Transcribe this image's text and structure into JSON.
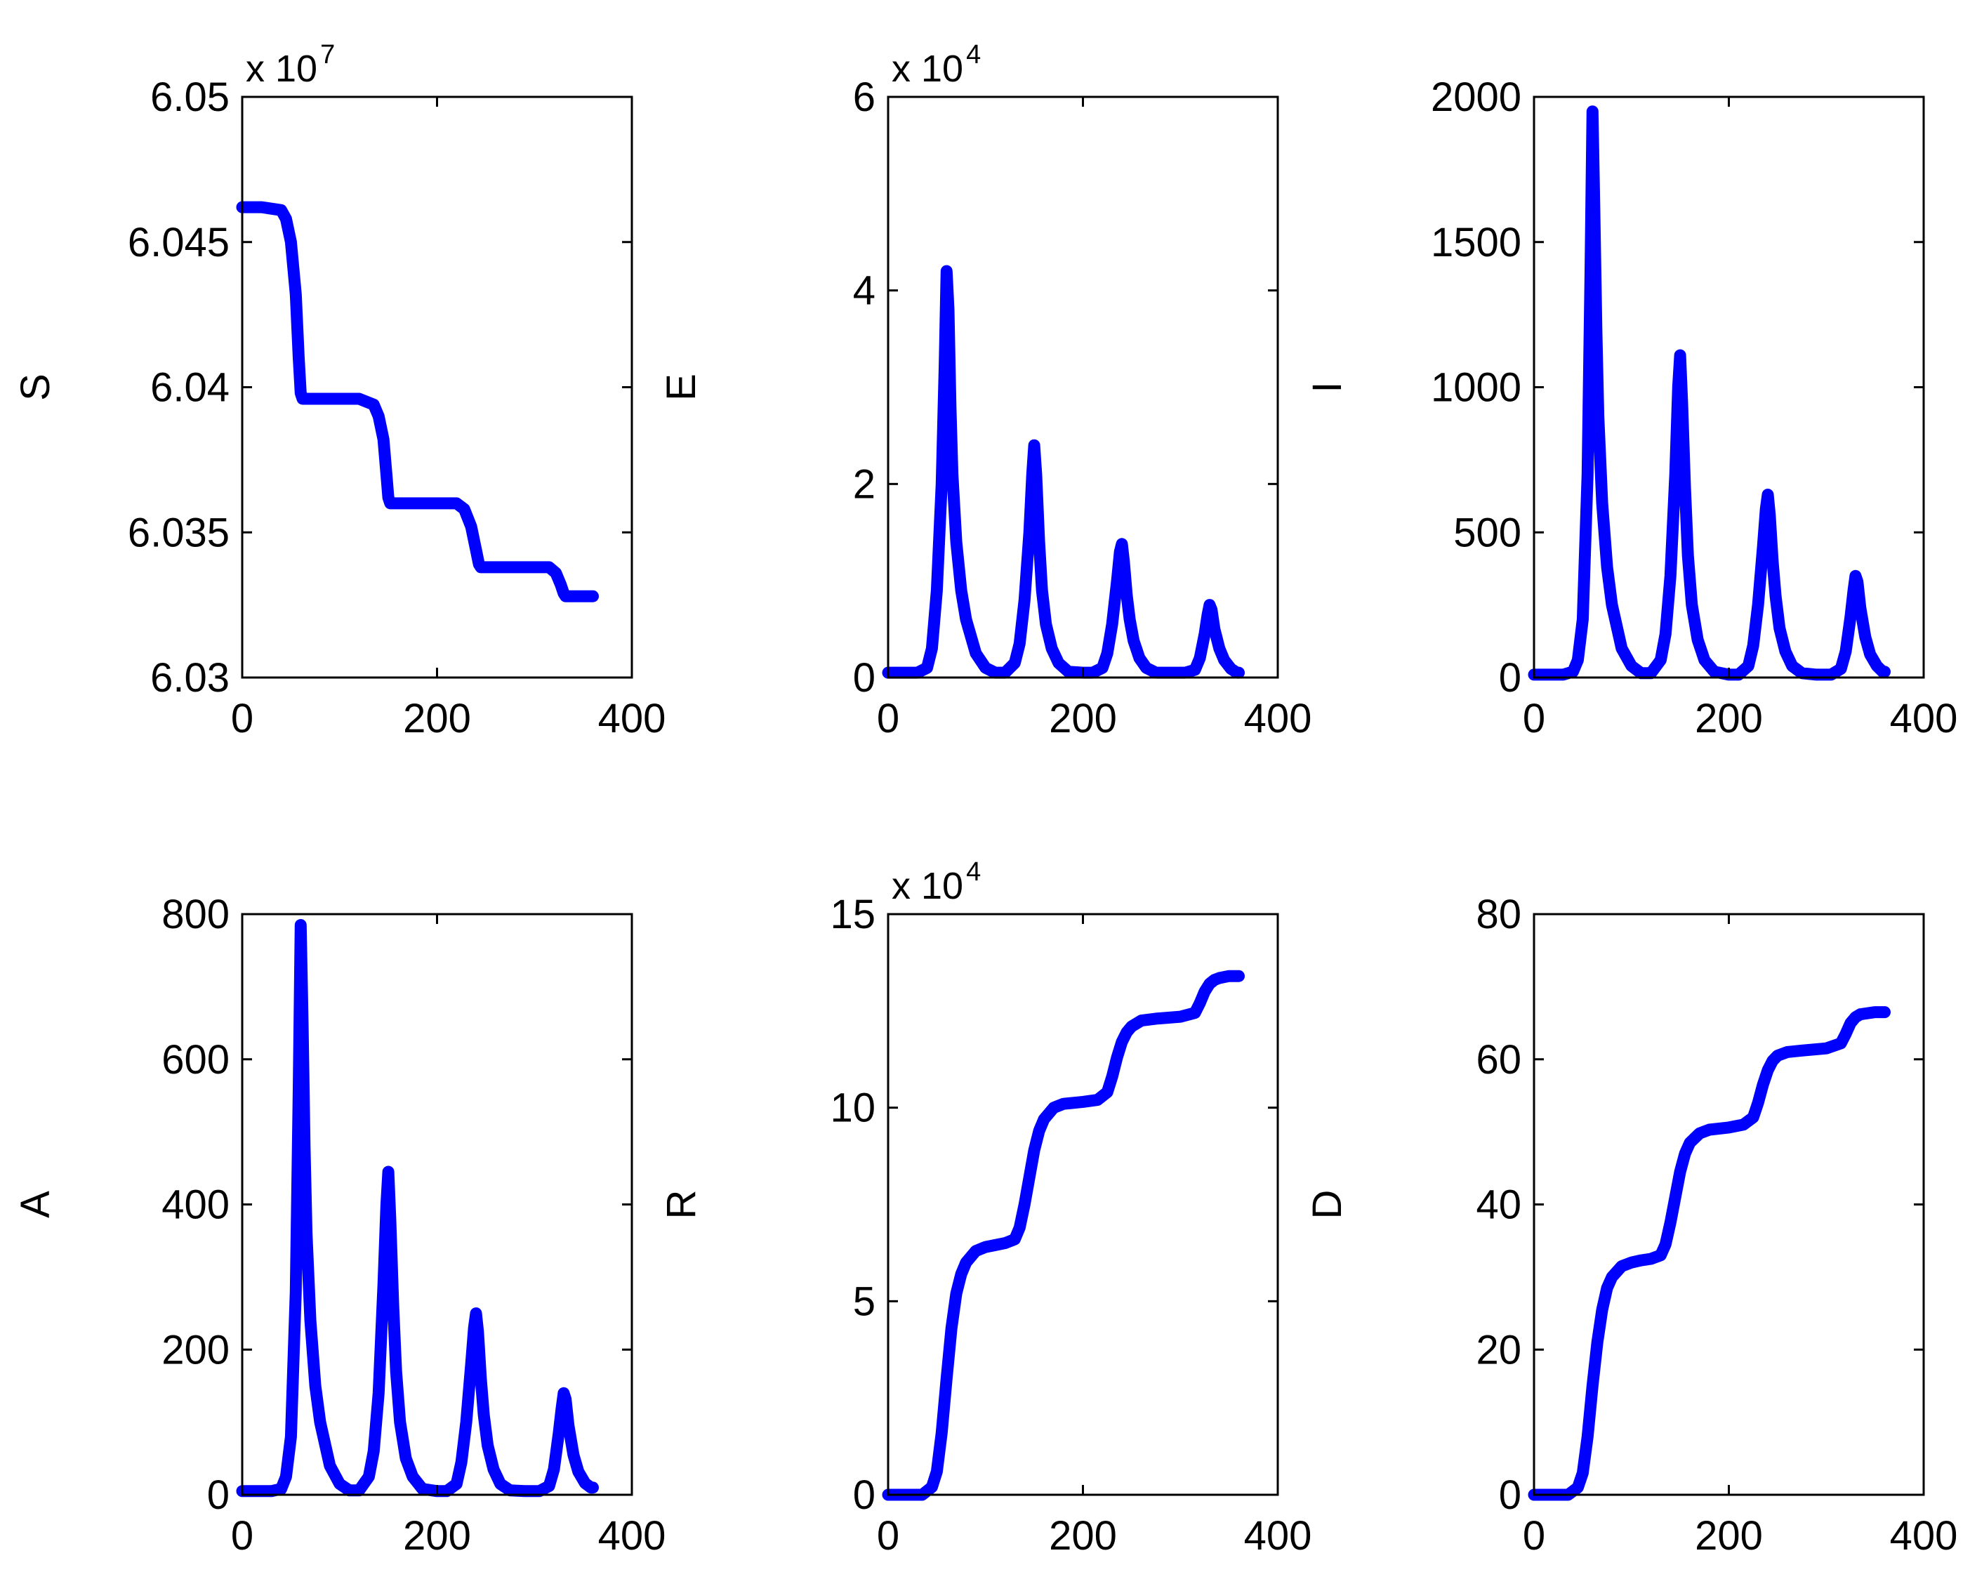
{
  "chart_data": [
    {
      "type": "line",
      "title": "",
      "xlabel": "",
      "ylabel": "S",
      "multiplier": {
        "base": "x 10",
        "exp": "7"
      },
      "xlim": [
        0,
        400
      ],
      "ylim": [
        6.03,
        6.05
      ],
      "xticks": [
        0,
        200,
        400
      ],
      "xtick_labels": [
        "0",
        "200",
        "400"
      ],
      "yticks": [
        6.03,
        6.035,
        6.04,
        6.045,
        6.05
      ],
      "ytick_labels": [
        "6.03",
        "6.035",
        "6.04",
        "6.045",
        "6.05"
      ],
      "color": "#0000ff",
      "series": [
        {
          "name": "S",
          "x": [
            0,
            20,
            40,
            45,
            50,
            55,
            58,
            60,
            62,
            80,
            120,
            135,
            140,
            145,
            148,
            150,
            152,
            200,
            220,
            228,
            235,
            240,
            243,
            245,
            300,
            315,
            322,
            327,
            330,
            332,
            360
          ],
          "y": [
            6.0462,
            6.0462,
            6.0461,
            6.0458,
            6.045,
            6.0432,
            6.041,
            6.0398,
            6.0396,
            6.0396,
            6.0396,
            6.0394,
            6.039,
            6.0382,
            6.037,
            6.0362,
            6.036,
            6.036,
            6.036,
            6.0358,
            6.0352,
            6.0344,
            6.0339,
            6.0338,
            6.0338,
            6.0338,
            6.0336,
            6.0332,
            6.0329,
            6.0328,
            6.0328
          ]
        }
      ]
    },
    {
      "type": "line",
      "title": "",
      "xlabel": "",
      "ylabel": "E",
      "multiplier": {
        "base": "x 10",
        "exp": "4"
      },
      "xlim": [
        0,
        400
      ],
      "ylim": [
        0,
        6
      ],
      "xticks": [
        0,
        200,
        400
      ],
      "xtick_labels": [
        "0",
        "200",
        "400"
      ],
      "yticks": [
        0,
        2,
        4,
        6
      ],
      "ytick_labels": [
        "0",
        "2",
        "4",
        "6"
      ],
      "color": "#0000ff",
      "series": [
        {
          "name": "E",
          "x": [
            0,
            30,
            40,
            45,
            50,
            55,
            58,
            60,
            62,
            64,
            66,
            70,
            75,
            80,
            90,
            100,
            110,
            120,
            130,
            135,
            140,
            145,
            148,
            150,
            152,
            155,
            158,
            162,
            168,
            175,
            185,
            200,
            210,
            220,
            225,
            230,
            235,
            238,
            240,
            242,
            245,
            248,
            252,
            258,
            265,
            275,
            290,
            305,
            315,
            320,
            325,
            328,
            330,
            332,
            335,
            340,
            345,
            352,
            358,
            360
          ],
          "y": [
            0.05,
            0.05,
            0.1,
            0.3,
            0.9,
            2.0,
            3.2,
            4.2,
            3.8,
            2.8,
            2.1,
            1.4,
            0.9,
            0.6,
            0.25,
            0.1,
            0.05,
            0.05,
            0.15,
            0.35,
            0.8,
            1.5,
            2.1,
            2.4,
            2.1,
            1.4,
            0.9,
            0.55,
            0.3,
            0.15,
            0.06,
            0.05,
            0.05,
            0.1,
            0.25,
            0.55,
            1.0,
            1.3,
            1.38,
            1.2,
            0.85,
            0.6,
            0.38,
            0.2,
            0.1,
            0.05,
            0.05,
            0.05,
            0.08,
            0.2,
            0.45,
            0.65,
            0.75,
            0.7,
            0.5,
            0.3,
            0.18,
            0.09,
            0.05,
            0.05
          ]
        }
      ]
    },
    {
      "type": "line",
      "title": "",
      "xlabel": "",
      "ylabel": "I",
      "xlim": [
        0,
        400
      ],
      "ylim": [
        0,
        2000
      ],
      "xticks": [
        0,
        200,
        400
      ],
      "xtick_labels": [
        "0",
        "200",
        "400"
      ],
      "yticks": [
        0,
        500,
        1000,
        1500,
        2000
      ],
      "ytick_labels": [
        "0",
        "500",
        "1000",
        "1500",
        "2000"
      ],
      "color": "#0000ff",
      "series": [
        {
          "name": "I",
          "x": [
            0,
            30,
            40,
            45,
            50,
            55,
            58,
            60,
            62,
            64,
            66,
            70,
            75,
            80,
            90,
            100,
            110,
            120,
            130,
            135,
            140,
            145,
            148,
            150,
            152,
            155,
            158,
            162,
            168,
            175,
            185,
            200,
            210,
            220,
            225,
            230,
            235,
            238,
            240,
            242,
            245,
            248,
            252,
            258,
            265,
            275,
            290,
            305,
            315,
            320,
            325,
            328,
            330,
            332,
            335,
            340,
            345,
            352,
            358,
            360
          ],
          "y": [
            10,
            10,
            20,
            60,
            200,
            700,
            1400,
            1950,
            1600,
            1200,
            900,
            600,
            380,
            250,
            100,
            40,
            15,
            15,
            60,
            150,
            350,
            700,
            1000,
            1110,
            950,
            650,
            420,
            250,
            130,
            60,
            20,
            10,
            10,
            40,
            110,
            250,
            450,
            580,
            630,
            560,
            400,
            280,
            170,
            90,
            40,
            15,
            10,
            10,
            30,
            90,
            210,
            300,
            350,
            330,
            240,
            140,
            80,
            40,
            20,
            20
          ]
        }
      ]
    },
    {
      "type": "line",
      "title": "",
      "xlabel": "",
      "ylabel": "A",
      "xlim": [
        0,
        400
      ],
      "ylim": [
        0,
        800
      ],
      "xticks": [
        0,
        200,
        400
      ],
      "xtick_labels": [
        "0",
        "200",
        "400"
      ],
      "yticks": [
        0,
        200,
        400,
        600,
        800
      ],
      "ytick_labels": [
        "0",
        "200",
        "400",
        "600",
        "800"
      ],
      "color": "#0000ff",
      "series": [
        {
          "name": "A",
          "x": [
            0,
            30,
            40,
            45,
            50,
            55,
            58,
            60,
            62,
            64,
            66,
            70,
            75,
            80,
            90,
            100,
            110,
            120,
            130,
            135,
            140,
            145,
            148,
            150,
            152,
            155,
            158,
            162,
            168,
            175,
            185,
            200,
            210,
            220,
            225,
            230,
            235,
            238,
            240,
            242,
            245,
            248,
            252,
            258,
            265,
            275,
            290,
            305,
            315,
            320,
            325,
            328,
            330,
            332,
            335,
            340,
            345,
            352,
            358,
            360
          ],
          "y": [
            5,
            5,
            8,
            25,
            80,
            280,
            560,
            785,
            650,
            480,
            360,
            240,
            150,
            100,
            40,
            15,
            6,
            6,
            25,
            60,
            140,
            290,
            400,
            445,
            380,
            260,
            170,
            100,
            50,
            25,
            8,
            5,
            5,
            15,
            45,
            100,
            180,
            230,
            250,
            225,
            160,
            110,
            68,
            35,
            15,
            6,
            5,
            5,
            12,
            35,
            85,
            120,
            140,
            132,
            95,
            55,
            32,
            16,
            10,
            10
          ]
        }
      ]
    },
    {
      "type": "line",
      "title": "",
      "xlabel": "",
      "ylabel": "R",
      "multiplier": {
        "base": "x 10",
        "exp": "4"
      },
      "xlim": [
        0,
        400
      ],
      "ylim": [
        0,
        15
      ],
      "xticks": [
        0,
        200,
        400
      ],
      "xtick_labels": [
        "0",
        "200",
        "400"
      ],
      "yticks": [
        0,
        5,
        10,
        15
      ],
      "ytick_labels": [
        "0",
        "5",
        "10",
        "15"
      ],
      "color": "#0000ff",
      "series": [
        {
          "name": "R",
          "x": [
            0,
            35,
            45,
            50,
            55,
            60,
            65,
            70,
            75,
            80,
            90,
            100,
            110,
            120,
            130,
            135,
            140,
            145,
            150,
            155,
            160,
            170,
            180,
            200,
            215,
            225,
            230,
            235,
            240,
            245,
            250,
            260,
            275,
            300,
            315,
            320,
            325,
            330,
            335,
            340,
            350,
            360
          ],
          "y": [
            0.0,
            0.0,
            0.2,
            0.6,
            1.6,
            3.0,
            4.3,
            5.2,
            5.7,
            6.0,
            6.3,
            6.4,
            6.45,
            6.5,
            6.6,
            6.9,
            7.5,
            8.2,
            8.9,
            9.4,
            9.7,
            10.0,
            10.1,
            10.15,
            10.2,
            10.4,
            10.8,
            11.3,
            11.7,
            11.95,
            12.1,
            12.25,
            12.3,
            12.35,
            12.45,
            12.7,
            13.0,
            13.2,
            13.3,
            13.35,
            13.4,
            13.4
          ]
        }
      ]
    },
    {
      "type": "line",
      "title": "",
      "xlabel": "",
      "ylabel": "D",
      "xlim": [
        0,
        400
      ],
      "ylim": [
        0,
        80
      ],
      "xticks": [
        0,
        200,
        400
      ],
      "xtick_labels": [
        "0",
        "200",
        "400"
      ],
      "yticks": [
        0,
        20,
        40,
        60,
        80
      ],
      "ytick_labels": [
        "0",
        "20",
        "40",
        "60",
        "80"
      ],
      "color": "#0000ff",
      "series": [
        {
          "name": "D",
          "x": [
            0,
            35,
            45,
            50,
            55,
            60,
            65,
            70,
            75,
            80,
            90,
            100,
            110,
            120,
            130,
            135,
            140,
            145,
            150,
            155,
            160,
            170,
            180,
            200,
            215,
            225,
            230,
            235,
            240,
            245,
            250,
            260,
            275,
            300,
            315,
            320,
            325,
            330,
            335,
            340,
            350,
            360
          ],
          "y": [
            0.0,
            0.0,
            1.0,
            3.0,
            8.0,
            15.0,
            21.0,
            25.5,
            28.5,
            30.0,
            31.5,
            32.0,
            32.3,
            32.5,
            33.0,
            34.5,
            37.5,
            41.0,
            44.5,
            47.0,
            48.5,
            49.8,
            50.3,
            50.6,
            51.0,
            52.0,
            54.0,
            56.5,
            58.5,
            59.8,
            60.5,
            61.0,
            61.2,
            61.5,
            62.2,
            63.5,
            65.0,
            65.8,
            66.2,
            66.3,
            66.5,
            66.5
          ]
        }
      ]
    }
  ]
}
